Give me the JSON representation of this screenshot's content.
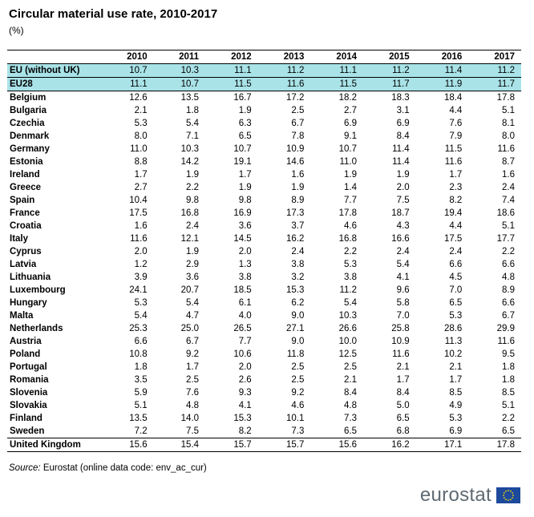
{
  "title": "Circular material use rate, 2010-2017",
  "unit": "(%)",
  "columns": [
    "2010",
    "2011",
    "2012",
    "2013",
    "2014",
    "2015",
    "2016",
    "2017"
  ],
  "rows": [
    {
      "name": "EU (without UK)",
      "values": [
        "10.7",
        "10.3",
        "11.1",
        "11.2",
        "11.1",
        "11.2",
        "11.4",
        "11.2"
      ],
      "highlight": true
    },
    {
      "name": "EU28",
      "values": [
        "11.1",
        "10.7",
        "11.5",
        "11.6",
        "11.5",
        "11.7",
        "11.9",
        "11.7"
      ],
      "highlight": true
    },
    {
      "name": "Belgium",
      "values": [
        "12.6",
        "13.5",
        "16.7",
        "17.2",
        "18.2",
        "18.3",
        "18.4",
        "17.8"
      ]
    },
    {
      "name": "Bulgaria",
      "values": [
        "2.1",
        "1.8",
        "1.9",
        "2.5",
        "2.7",
        "3.1",
        "4.4",
        "5.1"
      ]
    },
    {
      "name": "Czechia",
      "values": [
        "5.3",
        "5.4",
        "6.3",
        "6.7",
        "6.9",
        "6.9",
        "7.6",
        "8.1"
      ]
    },
    {
      "name": "Denmark",
      "values": [
        "8.0",
        "7.1",
        "6.5",
        "7.8",
        "9.1",
        "8.4",
        "7.9",
        "8.0"
      ]
    },
    {
      "name": "Germany",
      "values": [
        "11.0",
        "10.3",
        "10.7",
        "10.9",
        "10.7",
        "11.4",
        "11.5",
        "11.6"
      ]
    },
    {
      "name": "Estonia",
      "values": [
        "8.8",
        "14.2",
        "19.1",
        "14.6",
        "11.0",
        "11.4",
        "11.6",
        "8.7"
      ]
    },
    {
      "name": "Ireland",
      "values": [
        "1.7",
        "1.9",
        "1.7",
        "1.6",
        "1.9",
        "1.9",
        "1.7",
        "1.6"
      ]
    },
    {
      "name": "Greece",
      "values": [
        "2.7",
        "2.2",
        "1.9",
        "1.9",
        "1.4",
        "2.0",
        "2.3",
        "2.4"
      ]
    },
    {
      "name": "Spain",
      "values": [
        "10.4",
        "9.8",
        "9.8",
        "8.9",
        "7.7",
        "7.5",
        "8.2",
        "7.4"
      ]
    },
    {
      "name": "France",
      "values": [
        "17.5",
        "16.8",
        "16.9",
        "17.3",
        "17.8",
        "18.7",
        "19.4",
        "18.6"
      ]
    },
    {
      "name": "Croatia",
      "values": [
        "1.6",
        "2.4",
        "3.6",
        "3.7",
        "4.6",
        "4.3",
        "4.4",
        "5.1"
      ]
    },
    {
      "name": "Italy",
      "values": [
        "11.6",
        "12.1",
        "14.5",
        "16.2",
        "16.8",
        "16.6",
        "17.5",
        "17.7"
      ]
    },
    {
      "name": "Cyprus",
      "values": [
        "2.0",
        "1.9",
        "2.0",
        "2.4",
        "2.2",
        "2.4",
        "2.4",
        "2.2"
      ]
    },
    {
      "name": "Latvia",
      "values": [
        "1.2",
        "2.9",
        "1.3",
        "3.8",
        "5.3",
        "5.4",
        "6.6",
        "6.6"
      ]
    },
    {
      "name": "Lithuania",
      "values": [
        "3.9",
        "3.6",
        "3.8",
        "3.2",
        "3.8",
        "4.1",
        "4.5",
        "4.8"
      ]
    },
    {
      "name": "Luxembourg",
      "values": [
        "24.1",
        "20.7",
        "18.5",
        "15.3",
        "11.2",
        "9.6",
        "7.0",
        "8.9"
      ]
    },
    {
      "name": "Hungary",
      "values": [
        "5.3",
        "5.4",
        "6.1",
        "6.2",
        "5.4",
        "5.8",
        "6.5",
        "6.6"
      ]
    },
    {
      "name": "Malta",
      "values": [
        "5.4",
        "4.7",
        "4.0",
        "9.0",
        "10.3",
        "7.0",
        "5.3",
        "6.7"
      ]
    },
    {
      "name": "Netherlands",
      "values": [
        "25.3",
        "25.0",
        "26.5",
        "27.1",
        "26.6",
        "25.8",
        "28.6",
        "29.9"
      ]
    },
    {
      "name": "Austria",
      "values": [
        "6.6",
        "6.7",
        "7.7",
        "9.0",
        "10.0",
        "10.9",
        "11.3",
        "11.6"
      ]
    },
    {
      "name": "Poland",
      "values": [
        "10.8",
        "9.2",
        "10.6",
        "11.8",
        "12.5",
        "11.6",
        "10.2",
        "9.5"
      ]
    },
    {
      "name": "Portugal",
      "values": [
        "1.8",
        "1.7",
        "2.0",
        "2.5",
        "2.5",
        "2.1",
        "2.1",
        "1.8"
      ]
    },
    {
      "name": "Romania",
      "values": [
        "3.5",
        "2.5",
        "2.6",
        "2.5",
        "2.1",
        "1.7",
        "1.7",
        "1.8"
      ]
    },
    {
      "name": "Slovenia",
      "values": [
        "5.9",
        "7.6",
        "9.3",
        "9.2",
        "8.4",
        "8.4",
        "8.5",
        "8.5"
      ]
    },
    {
      "name": "Slovakia",
      "values": [
        "5.1",
        "4.8",
        "4.1",
        "4.6",
        "4.8",
        "5.0",
        "4.9",
        "5.1"
      ]
    },
    {
      "name": "Finland",
      "values": [
        "13.5",
        "14.0",
        "15.3",
        "10.1",
        "7.3",
        "6.5",
        "5.3",
        "2.2"
      ]
    },
    {
      "name": "Sweden",
      "values": [
        "7.2",
        "7.5",
        "8.2",
        "7.3",
        "6.5",
        "6.8",
        "6.9",
        "6.5"
      ]
    },
    {
      "name": "United Kingdom",
      "values": [
        "15.6",
        "15.4",
        "15.7",
        "15.7",
        "15.6",
        "16.2",
        "17.1",
        "17.8"
      ],
      "separator": true
    }
  ],
  "source": {
    "label": "Source:",
    "text": " Eurostat (online data code: env_ac_cur)"
  },
  "logo": {
    "text": "eurostat",
    "icon": "eu-flag-icon",
    "flag_color": "#1d4a9c",
    "star_color": "#ffdd00"
  },
  "colors": {
    "highlight_row": "#a9e3e8"
  }
}
